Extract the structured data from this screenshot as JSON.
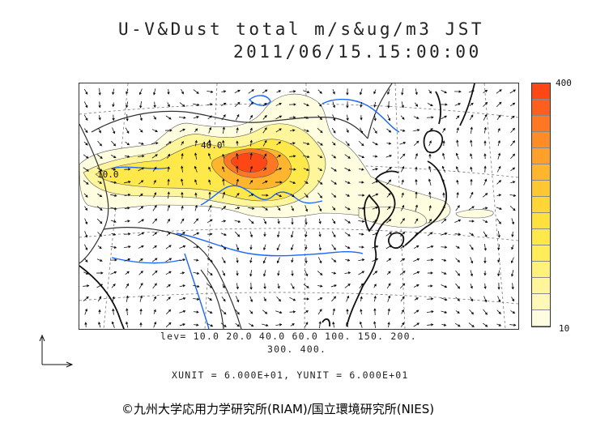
{
  "title": {
    "line1": "U-V&Dust total m/s&ug/m3 JST",
    "line2": "2011/06/15.15:00:00"
  },
  "colorbar": {
    "max_label": "400",
    "min_label": "10",
    "colors": [
      "#fffde0",
      "#fff8b8",
      "#fff59a",
      "#fff27a",
      "#ffee5a",
      "#ffe84a",
      "#ffe03c",
      "#ffd636",
      "#ffc832",
      "#ffb52e",
      "#ffa02a",
      "#ff8c26",
      "#ff7722",
      "#ff5f1c",
      "#ff4716"
    ]
  },
  "map": {
    "contour_labels": [
      "40.0",
      "10.0"
    ],
    "colors": {
      "coast": "#111111",
      "border": "#444444",
      "river": "#1a66ff",
      "grid": "#666666",
      "arrow": "#111111"
    }
  },
  "levels": {
    "line1": "lev= 10.0 20.0 40.0 60.0 100. 150. 200.",
    "line2": "300. 400."
  },
  "units": "XUNIT = 6.000E+01, YUNIT = 6.000E+01",
  "copyright": "©九州大学応用力学研究所(RIAM)/国立環境研究所(NIES)"
}
